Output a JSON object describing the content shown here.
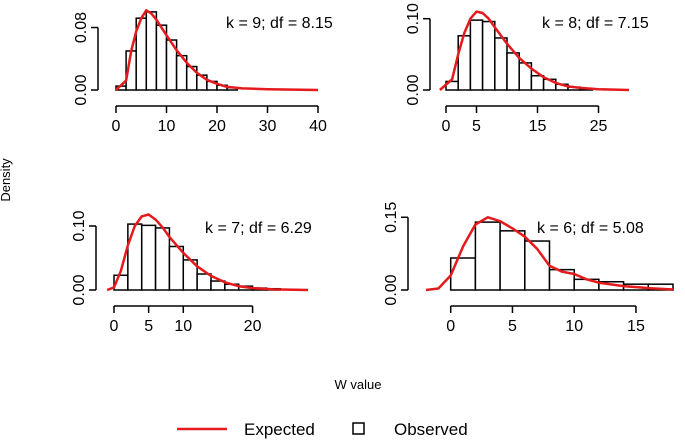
{
  "chart_data": {
    "type": "histogram-grid",
    "ylabel": "Density",
    "xlabel": "W value",
    "legend": {
      "position": "bottom-center",
      "items": [
        {
          "label": "Expected",
          "kind": "line",
          "color": "#e41a1c"
        },
        {
          "label": "Observed",
          "kind": "box",
          "color": "#000000"
        }
      ]
    },
    "panels": [
      {
        "annotation": "k = 9; df = 8.15",
        "xlim": [
          0,
          40
        ],
        "ylim": [
          0,
          0.105
        ],
        "xticks": [
          0,
          10,
          20,
          30,
          40
        ],
        "yticks": [
          0.0,
          0.08
        ],
        "ytick_labels": [
          "0.00",
          "0.08"
        ],
        "bin_width": 2,
        "bins": [
          {
            "x0": 0,
            "d": 0.005
          },
          {
            "x0": 2,
            "d": 0.05
          },
          {
            "x0": 4,
            "d": 0.092
          },
          {
            "x0": 6,
            "d": 0.1
          },
          {
            "x0": 8,
            "d": 0.083
          },
          {
            "x0": 10,
            "d": 0.064
          },
          {
            "x0": 12,
            "d": 0.044
          },
          {
            "x0": 14,
            "d": 0.03
          },
          {
            "x0": 16,
            "d": 0.019
          },
          {
            "x0": 18,
            "d": 0.011
          },
          {
            "x0": 20,
            "d": 0.006
          },
          {
            "x0": 22,
            "d": 0.003
          }
        ],
        "expected": [
          [
            0,
            0
          ],
          [
            2,
            0.012
          ],
          [
            3,
            0.05
          ],
          [
            4,
            0.075
          ],
          [
            5,
            0.092
          ],
          [
            6,
            0.102
          ],
          [
            7,
            0.098
          ],
          [
            8,
            0.09
          ],
          [
            10,
            0.07
          ],
          [
            12,
            0.051
          ],
          [
            14,
            0.035
          ],
          [
            16,
            0.022
          ],
          [
            18,
            0.013
          ],
          [
            20,
            0.008
          ],
          [
            22,
            0.004
          ],
          [
            25,
            0.002
          ],
          [
            30,
            0.001
          ],
          [
            40,
            0
          ]
        ]
      },
      {
        "annotation": "k = 8; df = 7.15",
        "xlim": [
          0,
          30
        ],
        "ylim": [
          0,
          0.115
        ],
        "xticks": [
          0,
          5,
          15,
          25
        ],
        "yticks": [
          0.0,
          0.1
        ],
        "ytick_labels": [
          "0.00",
          "0.10"
        ],
        "bin_width": 2,
        "bins": [
          {
            "x0": 0,
            "d": 0.012
          },
          {
            "x0": 2,
            "d": 0.076
          },
          {
            "x0": 4,
            "d": 0.098
          },
          {
            "x0": 6,
            "d": 0.096
          },
          {
            "x0": 8,
            "d": 0.073
          },
          {
            "x0": 10,
            "d": 0.052
          },
          {
            "x0": 12,
            "d": 0.038
          },
          {
            "x0": 14,
            "d": 0.02
          },
          {
            "x0": 16,
            "d": 0.015
          },
          {
            "x0": 18,
            "d": 0.008
          },
          {
            "x0": 20,
            "d": 0.004
          },
          {
            "x0": 22,
            "d": 0.002
          }
        ],
        "expected": [
          [
            -1,
            0
          ],
          [
            1,
            0.015
          ],
          [
            2,
            0.05
          ],
          [
            3,
            0.08
          ],
          [
            4,
            0.1
          ],
          [
            5,
            0.11
          ],
          [
            6,
            0.108
          ],
          [
            7,
            0.1
          ],
          [
            8,
            0.088
          ],
          [
            10,
            0.065
          ],
          [
            12,
            0.045
          ],
          [
            14,
            0.03
          ],
          [
            16,
            0.018
          ],
          [
            18,
            0.01
          ],
          [
            20,
            0.005
          ],
          [
            22,
            0.003
          ],
          [
            25,
            0.001
          ],
          [
            30,
            0
          ]
        ]
      },
      {
        "annotation": "k = 7; df = 6.29",
        "xlim": [
          0,
          28
        ],
        "ylim": [
          0,
          0.125
        ],
        "xticks": [
          0,
          5,
          10,
          20
        ],
        "yticks": [
          0.0,
          0.1
        ],
        "ytick_labels": [
          "0.00",
          "0.10"
        ],
        "bin_width": 2,
        "bins": [
          {
            "x0": 0,
            "d": 0.023
          },
          {
            "x0": 2,
            "d": 0.103
          },
          {
            "x0": 4,
            "d": 0.101
          },
          {
            "x0": 6,
            "d": 0.097
          },
          {
            "x0": 8,
            "d": 0.068
          },
          {
            "x0": 10,
            "d": 0.047
          },
          {
            "x0": 12,
            "d": 0.025
          },
          {
            "x0": 14,
            "d": 0.014
          },
          {
            "x0": 16,
            "d": 0.009
          },
          {
            "x0": 18,
            "d": 0.006
          },
          {
            "x0": 20,
            "d": 0.003
          },
          {
            "x0": 22,
            "d": 0.002
          }
        ],
        "expected": [
          [
            -1,
            0
          ],
          [
            0,
            0.004
          ],
          [
            1,
            0.03
          ],
          [
            2,
            0.07
          ],
          [
            3,
            0.1
          ],
          [
            4,
            0.115
          ],
          [
            5,
            0.118
          ],
          [
            6,
            0.11
          ],
          [
            7,
            0.098
          ],
          [
            8,
            0.083
          ],
          [
            10,
            0.058
          ],
          [
            12,
            0.037
          ],
          [
            14,
            0.022
          ],
          [
            16,
            0.012
          ],
          [
            18,
            0.006
          ],
          [
            20,
            0.003
          ],
          [
            23,
            0.001
          ],
          [
            28,
            0
          ]
        ]
      },
      {
        "annotation": "k = 6; df = 5.08",
        "xlim": [
          -2,
          18
        ],
        "ylim": [
          0,
          0.165
        ],
        "xticks": [
          0,
          5,
          10,
          15
        ],
        "yticks": [
          0.0,
          0.15
        ],
        "ytick_labels": [
          "0.00",
          "0.15"
        ],
        "bin_width": 2,
        "bins": [
          {
            "x0": 0,
            "d": 0.066
          },
          {
            "x0": 2,
            "d": 0.14
          },
          {
            "x0": 4,
            "d": 0.122
          },
          {
            "x0": 6,
            "d": 0.101
          },
          {
            "x0": 8,
            "d": 0.042
          },
          {
            "x0": 10,
            "d": 0.022
          },
          {
            "x0": 12,
            "d": 0.017
          },
          {
            "x0": 14,
            "d": 0.012
          },
          {
            "x0": 16,
            "d": 0.012
          }
        ],
        "expected": [
          [
            -2,
            0
          ],
          [
            -1,
            0.003
          ],
          [
            0,
            0.03
          ],
          [
            1,
            0.09
          ],
          [
            2,
            0.135
          ],
          [
            3,
            0.15
          ],
          [
            4,
            0.142
          ],
          [
            5,
            0.127
          ],
          [
            6,
            0.11
          ],
          [
            7,
            0.085
          ],
          [
            8,
            0.05
          ],
          [
            9,
            0.038
          ],
          [
            10,
            0.033
          ],
          [
            11,
            0.022
          ],
          [
            12,
            0.015
          ],
          [
            14,
            0.008
          ],
          [
            16,
            0.004
          ],
          [
            18,
            0.001
          ]
        ]
      }
    ]
  }
}
